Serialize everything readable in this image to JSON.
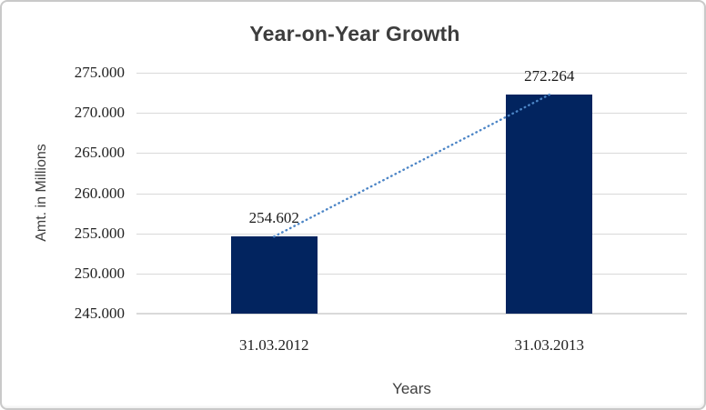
{
  "chart_data": {
    "type": "bar",
    "title": "Year-on-Year Growth",
    "xlabel": "Years",
    "ylabel": "Amt. in Millions",
    "categories": [
      "31.03.2012",
      "31.03.2013"
    ],
    "values": [
      254602,
      272264
    ],
    "value_labels": [
      "254.602",
      "272.264"
    ],
    "ylim": [
      245000,
      275000
    ],
    "yticks": [
      {
        "value": 275000,
        "label": "275.000"
      },
      {
        "value": 270000,
        "label": "270.000"
      },
      {
        "value": 265000,
        "label": "265.000"
      },
      {
        "value": 260000,
        "label": "260.000"
      },
      {
        "value": 255000,
        "label": "255.000"
      },
      {
        "value": 250000,
        "label": "250.000"
      },
      {
        "value": 245000,
        "label": "245.000"
      }
    ],
    "grid": true,
    "legend": false,
    "trendline": {
      "show": true,
      "style": "dotted",
      "color": "#4C85C6"
    },
    "colors": {
      "bar": "#02245F",
      "gridline": "#D9D9D9",
      "axis_line": "#D9D9D9",
      "title_text": "#3D3D3D",
      "axis_title_text": "#3F3F3F",
      "tick_text": "#1F1F1F",
      "background": "#FFFFFF",
      "border": "#C9C9C9"
    }
  }
}
